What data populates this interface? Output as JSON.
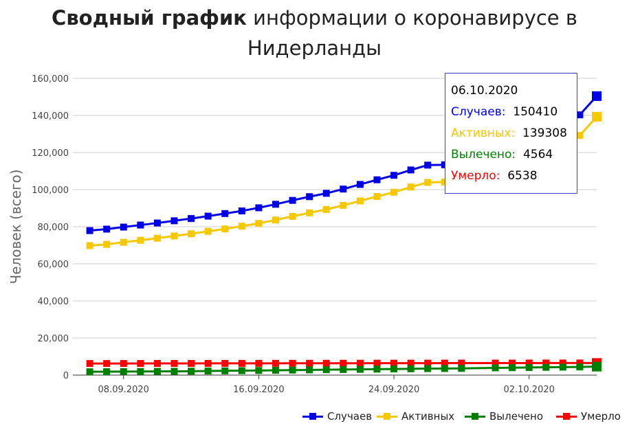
{
  "title": {
    "bold": "Сводный график",
    "rest": " информации о коронавирусе в Нидерланды"
  },
  "ylabel": "Человек (всего)",
  "tooltip": {
    "date": "06.10.2020",
    "rows": [
      {
        "label": "Случаев:",
        "value": "150410",
        "color": "#0000e6"
      },
      {
        "label": "Активных:",
        "value": "139308",
        "color": "#f5c800"
      },
      {
        "label": "Вылечено:",
        "value": "4564",
        "color": "#008000"
      },
      {
        "label": "Умерло:",
        "value": "6538",
        "color": "#ff0000"
      }
    ]
  },
  "legend": [
    {
      "label": "Случаев",
      "color": "#0000e6"
    },
    {
      "label": "Активных",
      "color": "#f5c800"
    },
    {
      "label": "Вылечено",
      "color": "#008000"
    },
    {
      "label": "Умерло",
      "color": "#ff0000"
    }
  ],
  "chart_data": {
    "type": "line",
    "x": [
      "2020-09-06",
      "2020-09-07",
      "2020-09-08",
      "2020-09-09",
      "2020-09-10",
      "2020-09-11",
      "2020-09-12",
      "2020-09-13",
      "2020-09-14",
      "2020-09-15",
      "2020-09-16",
      "2020-09-17",
      "2020-09-18",
      "2020-09-19",
      "2020-09-20",
      "2020-09-21",
      "2020-09-22",
      "2020-09-23",
      "2020-09-24",
      "2020-09-25",
      "2020-09-26",
      "2020-09-27",
      "2020-09-28",
      "2020-09-30",
      "2020-10-01",
      "2020-10-02",
      "2020-10-03",
      "2020-10-04",
      "2020-10-05",
      "2020-10-06"
    ],
    "x_ticks": [
      "08.09.2020",
      "16.09.2020",
      "24.09.2020",
      "02.10.2020"
    ],
    "y_ticks": [
      "0",
      "20,000",
      "40,000",
      "60,000",
      "80,000",
      "100,000",
      "120,000",
      "140,000",
      "160,000"
    ],
    "ylim": [
      0,
      160000
    ],
    "xlim": [
      "2020-09-05",
      "2020-10-06"
    ],
    "grid": true,
    "legend_position": "bottom-right",
    "series": [
      {
        "name": "Случаев",
        "color": "#0000e6",
        "values": [
          77900,
          78700,
          79800,
          80900,
          82000,
          83200,
          84400,
          85700,
          87100,
          88500,
          90200,
          92100,
          94200,
          96200,
          98000,
          100300,
          102800,
          105300,
          107700,
          110600,
          113200,
          113400,
          113500,
          125400,
          127400,
          130100,
          133100,
          136100,
          140300,
          150410
        ]
      },
      {
        "name": "Активных",
        "color": "#f5c800",
        "values": [
          69800,
          70500,
          71600,
          72700,
          73800,
          75000,
          76200,
          77500,
          78800,
          80300,
          81800,
          83600,
          85600,
          87500,
          89300,
          91500,
          93900,
          96300,
          98600,
          101400,
          103900,
          104100,
          104200,
          114800,
          116700,
          119400,
          122300,
          125200,
          129200,
          139308
        ]
      },
      {
        "name": "Вылечено",
        "color": "#008000",
        "values": [
          1800,
          1850,
          1900,
          1950,
          2000,
          2050,
          2100,
          2200,
          2300,
          2400,
          2500,
          2600,
          2700,
          2800,
          2900,
          3000,
          3100,
          3200,
          3300,
          3400,
          3500,
          3550,
          3600,
          3900,
          4000,
          4100,
          4200,
          4300,
          4400,
          4564
        ]
      },
      {
        "name": "Умерло",
        "color": "#ff0000",
        "values": [
          6250,
          6260,
          6270,
          6280,
          6290,
          6300,
          6310,
          6320,
          6330,
          6340,
          6350,
          6360,
          6370,
          6380,
          6390,
          6400,
          6410,
          6420,
          6430,
          6440,
          6450,
          6460,
          6470,
          6480,
          6490,
          6500,
          6510,
          6520,
          6530,
          6538
        ]
      }
    ]
  }
}
